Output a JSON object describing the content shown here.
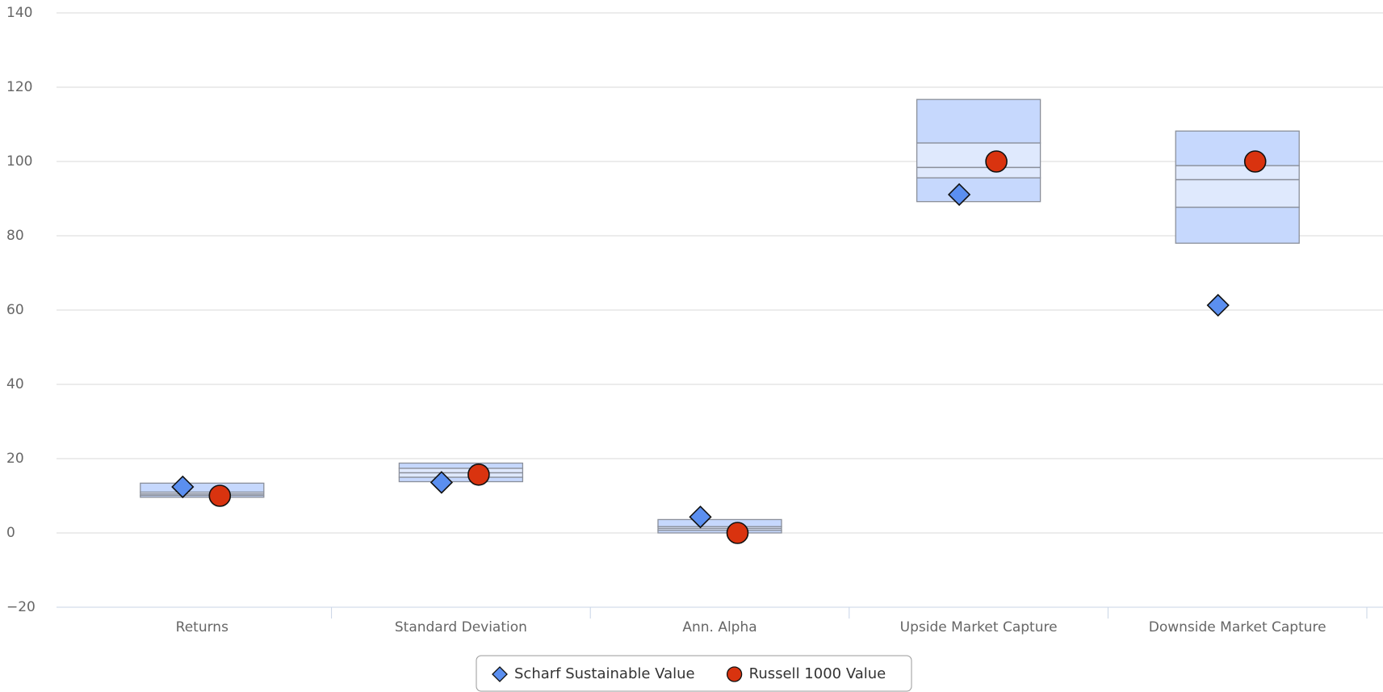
{
  "chart_data": {
    "type": "boxplot",
    "categories": [
      "Returns",
      "Standard Deviation",
      "Ann. Alpha",
      "Upside Market Capture",
      "Downside Market Capture"
    ],
    "boxes": {
      "color": "#c6d8fd",
      "inner_color": "#dfe9fd",
      "low": [
        9.6,
        13.8,
        0.0,
        89.2,
        78.0
      ],
      "q1": [
        10.1,
        15.0,
        0.7,
        95.6,
        87.7
      ],
      "median": [
        10.5,
        16.2,
        1.2,
        98.4,
        95.1
      ],
      "q3": [
        11.0,
        17.4,
        1.7,
        105.0,
        98.9
      ],
      "high": [
        13.4,
        18.8,
        3.6,
        116.7,
        108.2
      ]
    },
    "series": [
      {
        "name": "Scharf Sustainable Value",
        "color": "#5b8ff0",
        "marker": "diamond",
        "values": [
          12.4,
          13.6,
          4.3,
          91.1,
          61.3
        ]
      },
      {
        "name": "Russell 1000 Value",
        "color": "#d9330f",
        "marker": "circle",
        "values": [
          10.0,
          15.7,
          0.0,
          100.0,
          100.0
        ]
      }
    ],
    "ylim": [
      -20,
      140
    ],
    "yticks": [
      {
        "value": -20,
        "label": "−20"
      },
      0,
      20,
      40,
      60,
      80,
      100,
      120,
      140
    ],
    "grid": true
  }
}
